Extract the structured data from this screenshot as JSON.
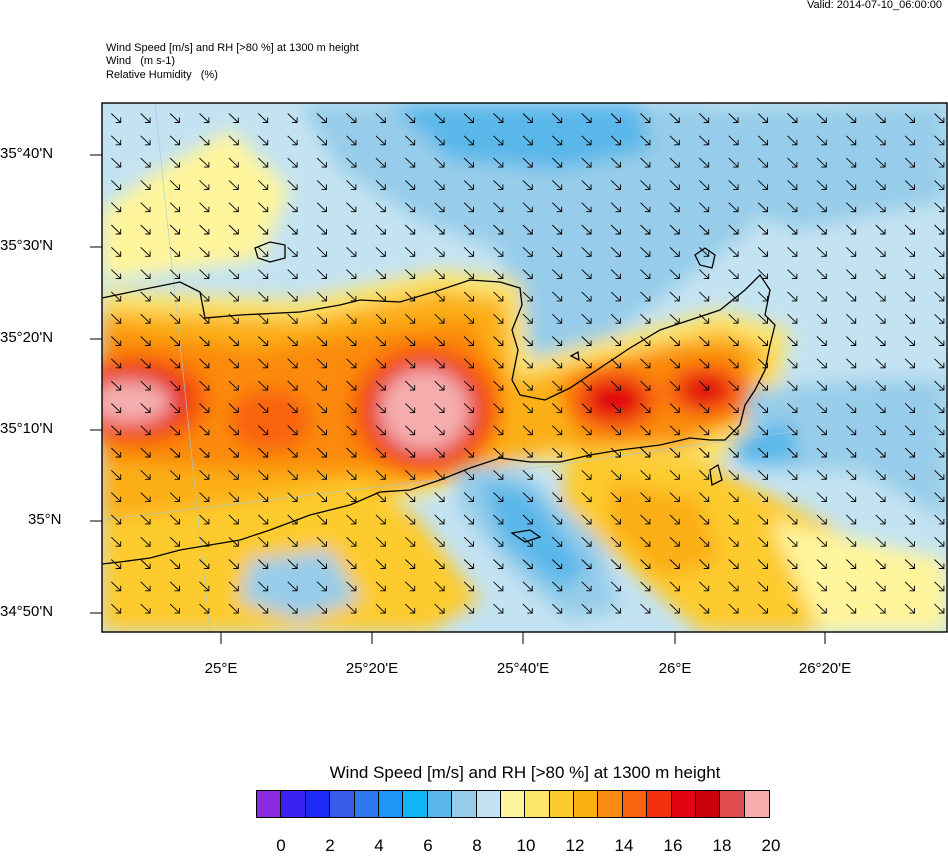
{
  "valid_time": "Valid: 2014-07-10_06:00:00",
  "header_lines": [
    "Wind Speed [m/s] and RH [>80 %] at 1300 m height",
    "Wind   (m s-1)",
    "Relative Humidity   (%)"
  ],
  "map": {
    "region": "Crete",
    "lat_labels": [
      "35°40'N",
      "35°30'N",
      "35°20'N",
      "35°10'N",
      "35°N",
      "34°50'N"
    ],
    "lon_labels": [
      "25°E",
      "25°20'E",
      "25°40'E",
      "26°E",
      "26°20'E"
    ],
    "wind_direction": "north-west to south-east",
    "colors": {
      "frame": "#000000",
      "coastline": "#000000",
      "arrows": "#000000"
    }
  },
  "colorbar": {
    "title": "Wind Speed [m/s] and RH [>80 %] at 1300 m height",
    "ticks": [
      "0",
      "2",
      "4",
      "6",
      "8",
      "10",
      "12",
      "14",
      "16",
      "18",
      "20"
    ],
    "colors": [
      "#8a2be2",
      "#3b22f0",
      "#1a2cf5",
      "#3a5ae8",
      "#2f78f0",
      "#1e96f5",
      "#12b4f5",
      "#5ab7ea",
      "#97cdea",
      "#c4e3f2",
      "#fff59c",
      "#fde46a",
      "#fdcb2e",
      "#fcaf12",
      "#fb8a10",
      "#f9630e",
      "#f2320f",
      "#e1050f",
      "#c9000c",
      "#e04b4f",
      "#f5adad"
    ]
  }
}
